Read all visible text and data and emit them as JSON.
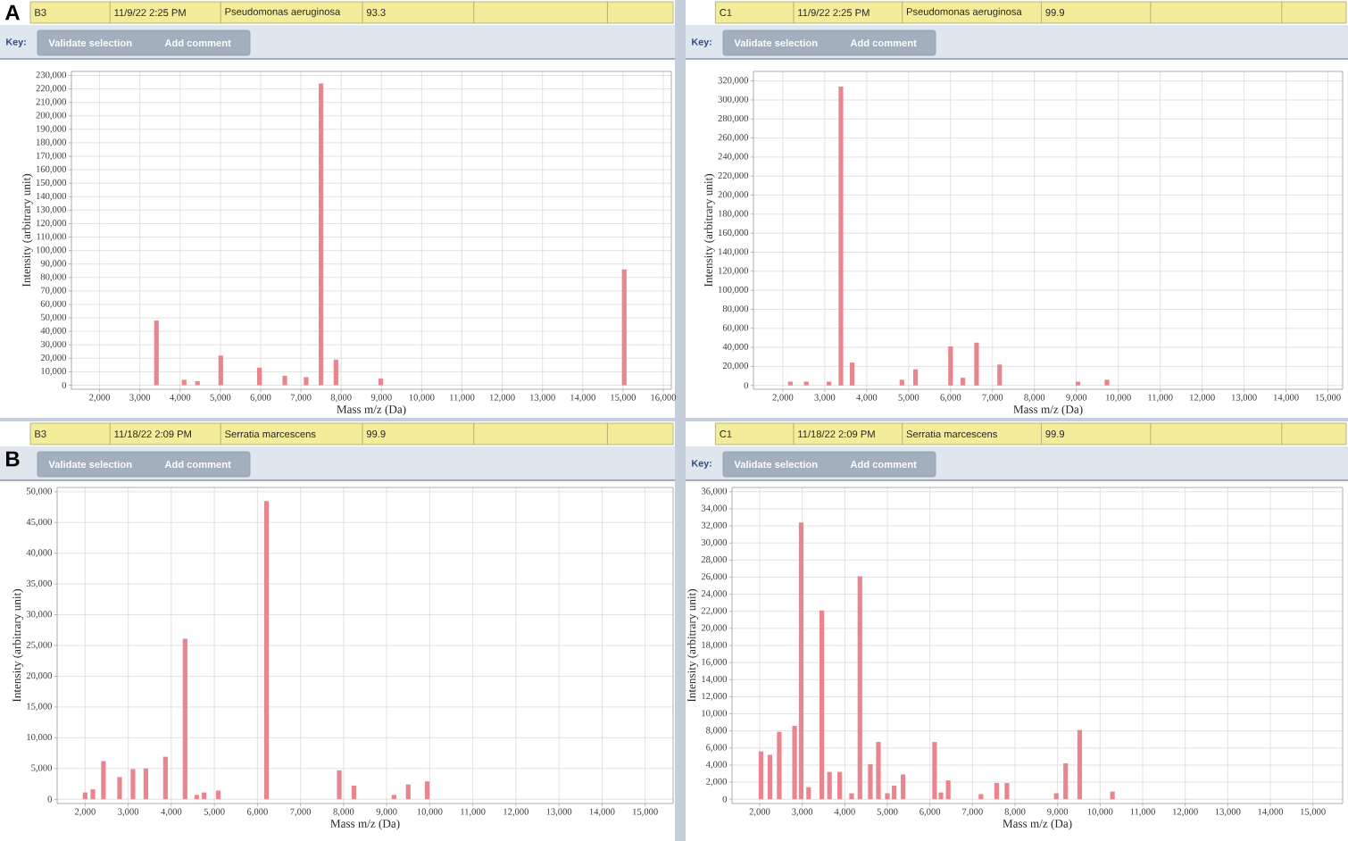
{
  "chart_data": [
    {
      "type": "bar",
      "title": "A",
      "xlabel": "Mass m/z (Da)",
      "ylabel": "Intensity (arbitrary unit)",
      "annotations": [
        "B3",
        "11/9/22 2:25 PM",
        "Pseudomonas aeruginosa",
        "93.3",
        "Validate selection",
        "Add comment",
        "Key:"
      ],
      "x": [
        3412,
        4100,
        4430,
        5010,
        5970,
        6600,
        7130,
        7500,
        7870,
        8985,
        15030
      ],
      "values": [
        48000,
        4000,
        3000,
        22000,
        13000,
        7000,
        6000,
        224000,
        19000,
        5000,
        86000
      ],
      "color": "#e8858f",
      "xlim": [
        1300,
        16200
      ],
      "ylim": [
        -3000,
        233000
      ],
      "grid": true,
      "xticks": [
        {
          "value": 2000,
          "label": "2,000"
        },
        {
          "value": 3000,
          "label": "3,000"
        },
        {
          "value": 4000,
          "label": "4,000"
        },
        {
          "value": 5000,
          "label": "5,000"
        },
        {
          "value": 6000,
          "label": "6,000"
        },
        {
          "value": 7000,
          "label": "7,000"
        },
        {
          "value": 8000,
          "label": "8,000"
        },
        {
          "value": 9000,
          "label": "9,000"
        },
        {
          "value": 10000,
          "label": "10,000"
        },
        {
          "value": 11000,
          "label": "11,000"
        },
        {
          "value": 12000,
          "label": "12,000"
        },
        {
          "value": 13000,
          "label": "13,000"
        },
        {
          "value": 14000,
          "label": "14,000"
        },
        {
          "value": 15000,
          "label": "15,000"
        },
        {
          "value": 16000,
          "label": "16,000"
        }
      ],
      "yticks": [
        0,
        {
          "value": 10000,
          "label": "10,000"
        },
        {
          "value": 20000,
          "label": "20,000"
        },
        {
          "value": 30000,
          "label": "30,000"
        },
        {
          "value": 40000,
          "label": "40,000"
        },
        {
          "value": 50000,
          "label": "50,000"
        },
        {
          "value": 60000,
          "label": "60,000"
        },
        {
          "value": 70000,
          "label": "70,000"
        },
        {
          "value": 80000,
          "label": "80,000"
        },
        {
          "value": 90000,
          "label": "90,000"
        },
        {
          "value": 100000,
          "label": "100,000"
        },
        {
          "value": 110000,
          "label": "110,000"
        },
        {
          "value": 120000,
          "label": "120,000"
        },
        {
          "value": 130000,
          "label": "130,000"
        },
        {
          "value": 140000,
          "label": "140,000"
        },
        {
          "value": 150000,
          "label": "150,000"
        },
        {
          "value": 160000,
          "label": "160,000"
        },
        {
          "value": 170000,
          "label": "170,000"
        },
        {
          "value": 180000,
          "label": "180,000"
        },
        {
          "value": 190000,
          "label": "190,000"
        },
        {
          "value": 200000,
          "label": "200,000"
        },
        {
          "value": 210000,
          "label": "210,000"
        },
        {
          "value": 220000,
          "label": "220,000"
        },
        {
          "value": 230000,
          "label": "230,000"
        }
      ]
    },
    {
      "type": "bar",
      "xlabel": "Mass m/z (Da)",
      "ylabel": "Intensity (arbitrary unit)",
      "annotations": [
        "C1",
        "11/9/22 2:25 PM",
        "Pseudomonas aeruginosa",
        "99.9",
        "Validate selection",
        "Add comment",
        "Key:"
      ],
      "x": [
        2180,
        2560,
        3100,
        3385,
        3653,
        4840,
        5165,
        6000,
        6295,
        6620,
        7170,
        9040,
        9730
      ],
      "values": [
        4000,
        4000,
        4000,
        314000,
        24000,
        6000,
        17000,
        41000,
        8000,
        45000,
        22000,
        4000,
        6000
      ],
      "color": "#e8858f",
      "xlim": [
        1300,
        15350
      ],
      "ylim": [
        -4000,
        330000
      ],
      "grid": true,
      "xticks": [
        {
          "value": 2000,
          "label": "2,000"
        },
        {
          "value": 3000,
          "label": "3,000"
        },
        {
          "value": 4000,
          "label": "4,000"
        },
        {
          "value": 5000,
          "label": "5,000"
        },
        {
          "value": 6000,
          "label": "6,000"
        },
        {
          "value": 7000,
          "label": "7,000"
        },
        {
          "value": 8000,
          "label": "8,000"
        },
        {
          "value": 9000,
          "label": "9,000"
        },
        {
          "value": 10000,
          "label": "10,000"
        },
        {
          "value": 11000,
          "label": "11,000"
        },
        {
          "value": 12000,
          "label": "12,000"
        },
        {
          "value": 13000,
          "label": "13,000"
        },
        {
          "value": 14000,
          "label": "14,000"
        },
        {
          "value": 15000,
          "label": "15,000"
        }
      ],
      "yticks": [
        0,
        {
          "value": 20000,
          "label": "20,000"
        },
        {
          "value": 40000,
          "label": "40,000"
        },
        {
          "value": 60000,
          "label": "60,000"
        },
        {
          "value": 80000,
          "label": "80,000"
        },
        {
          "value": 100000,
          "label": "100,000"
        },
        {
          "value": 120000,
          "label": "120,000"
        },
        {
          "value": 140000,
          "label": "140,000"
        },
        {
          "value": 160000,
          "label": "160,000"
        },
        {
          "value": 180000,
          "label": "180,000"
        },
        {
          "value": 200000,
          "label": "200,000"
        },
        {
          "value": 220000,
          "label": "220,000"
        },
        {
          "value": 240000,
          "label": "240,000"
        },
        {
          "value": 260000,
          "label": "260,000"
        },
        {
          "value": 280000,
          "label": "280,000"
        },
        {
          "value": 300000,
          "label": "300,000"
        },
        {
          "value": 320000,
          "label": "320,000"
        }
      ]
    },
    {
      "type": "bar",
      "title": "B",
      "xlabel": "Mass m/z (Da)",
      "ylabel": "Intensity (arbitrary unit)",
      "annotations": [
        "B3",
        "11/18/22 2:09 PM",
        "Serratia marcescens",
        "99.9",
        "Validate selection",
        "Add comment"
      ],
      "x": [
        2000,
        2180,
        2425,
        2800,
        3110,
        3410,
        3865,
        4320,
        4590,
        4760,
        5090,
        6210,
        7900,
        8240,
        9170,
        9500,
        9940
      ],
      "values": [
        1100,
        1600,
        6200,
        3600,
        4900,
        5000,
        6900,
        26100,
        700,
        1100,
        1400,
        48500,
        4700,
        2200,
        700,
        2400,
        2900
      ],
      "color": "#e8858f",
      "xlim": [
        1350,
        15650
      ],
      "ylim": [
        -700,
        50700
      ],
      "grid": true,
      "xticks": [
        {
          "value": 2000,
          "label": "2,000"
        },
        {
          "value": 3000,
          "label": "3,000"
        },
        {
          "value": 4000,
          "label": "4,000"
        },
        {
          "value": 5000,
          "label": "5,000"
        },
        {
          "value": 6000,
          "label": "6,000"
        },
        {
          "value": 7000,
          "label": "7,000"
        },
        {
          "value": 8000,
          "label": "8,000"
        },
        {
          "value": 9000,
          "label": "9,000"
        },
        {
          "value": 10000,
          "label": "10,000"
        },
        {
          "value": 11000,
          "label": "11,000"
        },
        {
          "value": 12000,
          "label": "12,000"
        },
        {
          "value": 13000,
          "label": "13,000"
        },
        {
          "value": 14000,
          "label": "14,000"
        },
        {
          "value": 15000,
          "label": "15,000"
        }
      ],
      "yticks": [
        0,
        {
          "value": 5000,
          "label": "5,000"
        },
        {
          "value": 10000,
          "label": "10,000"
        },
        {
          "value": 15000,
          "label": "15,000"
        },
        {
          "value": 20000,
          "label": "20,000"
        },
        {
          "value": 25000,
          "label": "25,000"
        },
        {
          "value": 30000,
          "label": "30,000"
        },
        {
          "value": 35000,
          "label": "35,000"
        },
        {
          "value": 40000,
          "label": "40,000"
        },
        {
          "value": 45000,
          "label": "45,000"
        },
        {
          "value": 50000,
          "label": "50,000"
        }
      ]
    },
    {
      "type": "bar",
      "xlabel": "Mass m/z (Da)",
      "ylabel": "Intensity (arbitrary unit)",
      "annotations": [
        "C1",
        "11/18/22 2:09 PM",
        "Serratia marcescens",
        "99.9",
        "Validate selection",
        "Add comment",
        "Key:"
      ],
      "x": [
        2030,
        2240,
        2460,
        2820,
        2975,
        3150,
        3460,
        3640,
        3880,
        4160,
        4355,
        4600,
        4790,
        5000,
        5160,
        5370,
        6110,
        6260,
        6430,
        7200,
        7570,
        7810,
        8970,
        9190,
        9520,
        10290
      ],
      "values": [
        5600,
        5200,
        7900,
        8600,
        32400,
        1400,
        22100,
        3200,
        3200,
        700,
        26100,
        4100,
        6700,
        700,
        1600,
        2900,
        6700,
        800,
        2200,
        600,
        1900,
        1900,
        700,
        4200,
        8100,
        900
      ],
      "color": "#e8858f",
      "xlim": [
        1350,
        15700
      ],
      "ylim": [
        -500,
        36500
      ],
      "grid": true,
      "xticks": [
        {
          "value": 2000,
          "label": "2,000"
        },
        {
          "value": 3000,
          "label": "3,000"
        },
        {
          "value": 4000,
          "label": "4,000"
        },
        {
          "value": 5000,
          "label": "5,000"
        },
        {
          "value": 6000,
          "label": "6,000"
        },
        {
          "value": 7000,
          "label": "7,000"
        },
        {
          "value": 8000,
          "label": "8,000"
        },
        {
          "value": 9000,
          "label": "9,000"
        },
        {
          "value": 10000,
          "label": "10,000"
        },
        {
          "value": 11000,
          "label": "11,000"
        },
        {
          "value": 12000,
          "label": "12,000"
        },
        {
          "value": 13000,
          "label": "13,000"
        },
        {
          "value": 14000,
          "label": "14,000"
        },
        {
          "value": 15000,
          "label": "15,000"
        }
      ],
      "yticks": [
        0,
        {
          "value": 2000,
          "label": "2,000"
        },
        {
          "value": 4000,
          "label": "4,000"
        },
        {
          "value": 6000,
          "label": "6,000"
        },
        {
          "value": 8000,
          "label": "8,000"
        },
        {
          "value": 10000,
          "label": "10,000"
        },
        {
          "value": 12000,
          "label": "12,000"
        },
        {
          "value": 14000,
          "label": "14,000"
        },
        {
          "value": 16000,
          "label": "16,000"
        },
        {
          "value": 18000,
          "label": "18,000"
        },
        {
          "value": 20000,
          "label": "20,000"
        },
        {
          "value": 22000,
          "label": "22,000"
        },
        {
          "value": 24000,
          "label": "24,000"
        },
        {
          "value": 26000,
          "label": "26,000"
        },
        {
          "value": 28000,
          "label": "28,000"
        },
        {
          "value": 30000,
          "label": "30,000"
        },
        {
          "value": 32000,
          "label": "32,000"
        },
        {
          "value": 34000,
          "label": "34,000"
        },
        {
          "value": 36000,
          "label": "36,000"
        }
      ]
    }
  ]
}
